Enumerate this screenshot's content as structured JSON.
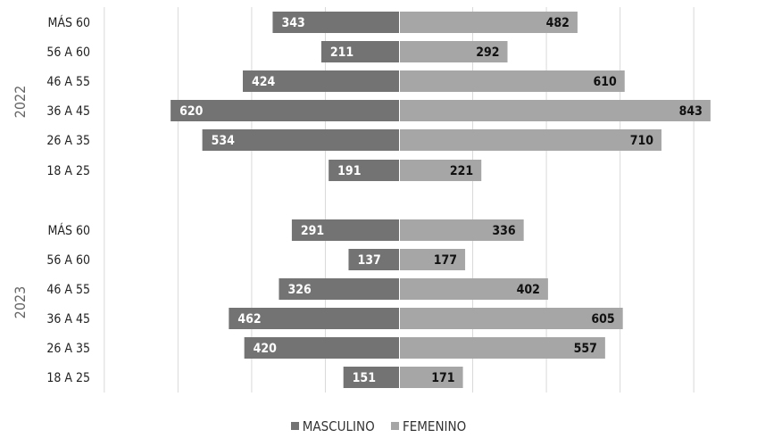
{
  "chart_data": {
    "type": "bar",
    "orientation": "horizontal-diverging",
    "groups": [
      {
        "label": "2022",
        "categories": [
          "MÁS 60",
          "56 A 60",
          "46 A 55",
          "36 A 45",
          "26 A 35",
          "18 A 25"
        ],
        "series": [
          {
            "name": "MASCULINO",
            "values": [
              343,
              211,
              424,
              620,
              534,
              191
            ]
          },
          {
            "name": "FEMENINO",
            "values": [
              482,
              292,
              610,
              843,
              710,
              221
            ]
          }
        ]
      },
      {
        "label": "2023",
        "categories": [
          "MÁS 60",
          "56 A 60",
          "46 A 55",
          "36 A 45",
          "26 A 35",
          "18 A 25"
        ],
        "series": [
          {
            "name": "MASCULINO",
            "values": [
              291,
              137,
              326,
              462,
              420,
              151
            ]
          },
          {
            "name": "FEMENINO",
            "values": [
              336,
              177,
              402,
              605,
              557,
              171
            ]
          }
        ]
      }
    ],
    "legend": [
      {
        "name": "MASCULINO",
        "color": "#737373"
      },
      {
        "name": "FEMENINO",
        "color": "#a6a6a6"
      }
    ],
    "legend_position": "bottom",
    "grid": true,
    "xlim": [
      -800,
      900
    ],
    "colors": {
      "MASCULINO": "#737373",
      "FEMENINO": "#a6a6a6"
    }
  }
}
